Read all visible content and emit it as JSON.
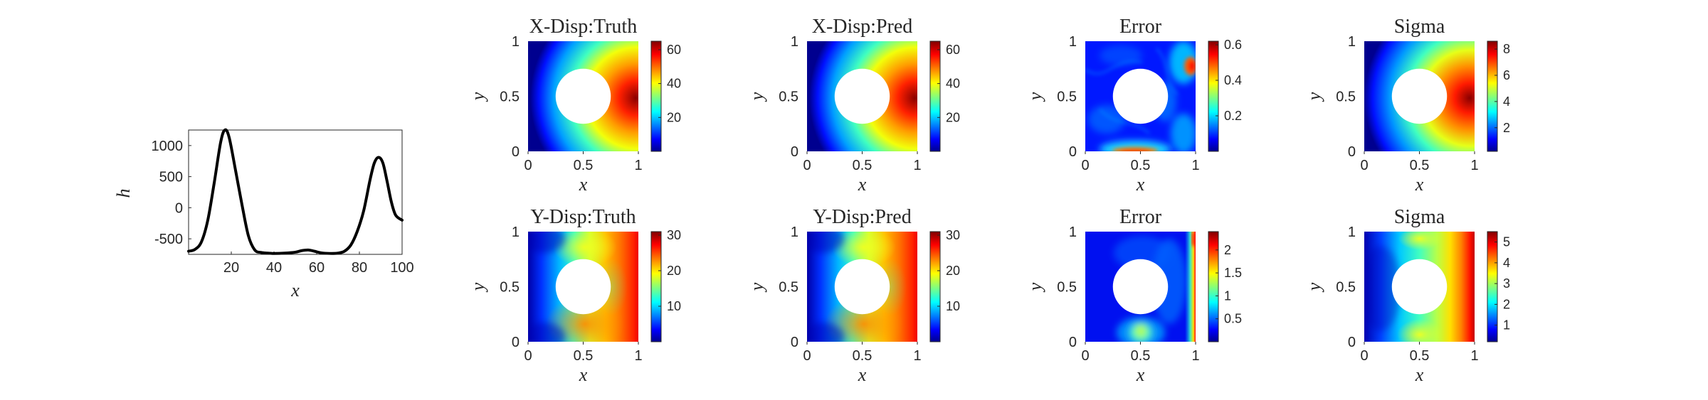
{
  "line_plot": {
    "ylabel": "h",
    "xlabel": "x",
    "xticks": [
      "20",
      "40",
      "60",
      "80",
      "100"
    ],
    "yticks": [
      "1000",
      "500",
      "0",
      "-500"
    ]
  },
  "panels": [
    {
      "title": "X-Disp:Truth",
      "xlabel": "x",
      "ylabel": "y",
      "xticks": [
        "0",
        "0.5",
        "1"
      ],
      "yticks": [
        "0",
        "0.5",
        "1"
      ],
      "cbar_ticks": [
        "60",
        "40",
        "20"
      ]
    },
    {
      "title": "X-Disp:Pred",
      "xlabel": "x",
      "ylabel": "y",
      "xticks": [
        "0",
        "0.5",
        "1"
      ],
      "yticks": [
        "0",
        "0.5",
        "1"
      ],
      "cbar_ticks": [
        "60",
        "40",
        "20"
      ]
    },
    {
      "title": "Error",
      "xlabel": "x",
      "ylabel": "y",
      "xticks": [
        "0",
        "0.5",
        "1"
      ],
      "yticks": [
        "0",
        "0.5",
        "1"
      ],
      "cbar_ticks": [
        "0.6",
        "0.4",
        "0.2"
      ]
    },
    {
      "title": "Sigma",
      "xlabel": "x",
      "ylabel": "y",
      "xticks": [
        "0",
        "0.5",
        "1"
      ],
      "yticks": [
        "0",
        "0.5",
        "1"
      ],
      "cbar_ticks": [
        "8",
        "6",
        "4",
        "2"
      ]
    },
    {
      "title": "Y-Disp:Truth",
      "xlabel": "x",
      "ylabel": "y",
      "xticks": [
        "0",
        "0.5",
        "1"
      ],
      "yticks": [
        "0",
        "0.5",
        "1"
      ],
      "cbar_ticks": [
        "30",
        "20",
        "10"
      ]
    },
    {
      "title": "Y-Disp:Pred",
      "xlabel": "x",
      "ylabel": "y",
      "xticks": [
        "0",
        "0.5",
        "1"
      ],
      "yticks": [
        "0",
        "0.5",
        "1"
      ],
      "cbar_ticks": [
        "30",
        "20",
        "10"
      ]
    },
    {
      "title": "Error",
      "xlabel": "x",
      "ylabel": "y",
      "xticks": [
        "0",
        "0.5",
        "1"
      ],
      "yticks": [
        "0",
        "0.5",
        "1"
      ],
      "cbar_ticks": [
        "2",
        "1.5",
        "1",
        "0.5"
      ]
    },
    {
      "title": "Sigma",
      "xlabel": "x",
      "ylabel": "y",
      "xticks": [
        "0",
        "0.5",
        "1"
      ],
      "yticks": [
        "0",
        "0.5",
        "1"
      ],
      "cbar_ticks": [
        "5",
        "4",
        "3",
        "2",
        "1"
      ]
    }
  ],
  "chart_data": [
    {
      "type": "line",
      "xlabel": "x",
      "ylabel": "h",
      "xlim": [
        0,
        100
      ],
      "ylim": [
        -750,
        1250
      ],
      "series": [
        {
          "color": "#000000",
          "x": [
            0,
            3,
            6,
            9,
            12,
            15,
            17,
            19,
            22,
            25,
            28,
            31,
            34,
            37,
            40,
            45,
            50,
            53,
            56,
            59,
            62,
            66,
            70,
            73,
            76,
            79,
            82,
            85,
            87,
            89,
            91,
            93,
            95,
            97,
            100
          ],
          "y": [
            -700,
            -670,
            -550,
            -200,
            400,
            1050,
            1250,
            1130,
            600,
            50,
            -450,
            -680,
            -720,
            -730,
            -735,
            -730,
            -715,
            -690,
            -680,
            -700,
            -725,
            -735,
            -730,
            -700,
            -600,
            -380,
            -50,
            450,
            720,
            810,
            720,
            420,
            90,
            -120,
            -200
          ]
        }
      ]
    },
    {
      "type": "heatmap",
      "title": "X-Disp:Truth",
      "xlabel": "x",
      "ylabel": "y",
      "xlim": [
        0,
        1
      ],
      "ylim": [
        0,
        1
      ],
      "colormap": "jet",
      "clim": [
        0,
        65
      ],
      "colorbar_ticks": [
        20,
        40,
        60
      ],
      "hole": {
        "center": [
          0.5,
          0.5
        ],
        "radius": 0.25
      }
    },
    {
      "type": "heatmap",
      "title": "X-Disp:Pred",
      "xlabel": "x",
      "ylabel": "y",
      "xlim": [
        0,
        1
      ],
      "ylim": [
        0,
        1
      ],
      "colormap": "jet",
      "clim": [
        0,
        65
      ],
      "colorbar_ticks": [
        20,
        40,
        60
      ],
      "hole": {
        "center": [
          0.5,
          0.5
        ],
        "radius": 0.25
      }
    },
    {
      "type": "heatmap",
      "title": "Error",
      "xlabel": "x",
      "ylabel": "y",
      "xlim": [
        0,
        1
      ],
      "ylim": [
        0,
        1
      ],
      "colormap": "jet",
      "clim": [
        0,
        0.62
      ],
      "colorbar_ticks": [
        0.2,
        0.4,
        0.6
      ],
      "hole": {
        "center": [
          0.5,
          0.5
        ],
        "radius": 0.25
      }
    },
    {
      "type": "heatmap",
      "title": "Sigma",
      "xlabel": "x",
      "ylabel": "y",
      "xlim": [
        0,
        1
      ],
      "ylim": [
        0,
        1
      ],
      "colormap": "jet",
      "clim": [
        0.2,
        8.6
      ],
      "colorbar_ticks": [
        2,
        4,
        6,
        8
      ],
      "hole": {
        "center": [
          0.5,
          0.5
        ],
        "radius": 0.25
      }
    },
    {
      "type": "heatmap",
      "title": "Y-Disp:Truth",
      "xlabel": "x",
      "ylabel": "y",
      "xlim": [
        0,
        1
      ],
      "ylim": [
        0,
        1
      ],
      "colormap": "jet",
      "clim": [
        0,
        31
      ],
      "colorbar_ticks": [
        10,
        20,
        30
      ],
      "hole": {
        "center": [
          0.5,
          0.5
        ],
        "radius": 0.25
      }
    },
    {
      "type": "heatmap",
      "title": "Y-Disp:Pred",
      "xlabel": "x",
      "ylabel": "y",
      "xlim": [
        0,
        1
      ],
      "ylim": [
        0,
        1
      ],
      "colormap": "jet",
      "clim": [
        0,
        31
      ],
      "colorbar_ticks": [
        10,
        20,
        30
      ],
      "hole": {
        "center": [
          0.5,
          0.5
        ],
        "radius": 0.25
      }
    },
    {
      "type": "heatmap",
      "title": "Error",
      "xlabel": "x",
      "ylabel": "y",
      "xlim": [
        0,
        1
      ],
      "ylim": [
        0,
        1
      ],
      "colormap": "jet",
      "clim": [
        0,
        2.4
      ],
      "colorbar_ticks": [
        0.5,
        1,
        1.5,
        2
      ],
      "hole": {
        "center": [
          0.5,
          0.5
        ],
        "radius": 0.25
      }
    },
    {
      "type": "heatmap",
      "title": "Sigma",
      "xlabel": "x",
      "ylabel": "y",
      "xlim": [
        0,
        1
      ],
      "ylim": [
        0,
        1
      ],
      "colormap": "jet",
      "clim": [
        0.2,
        5.5
      ],
      "colorbar_ticks": [
        1,
        2,
        3,
        4,
        5
      ],
      "hole": {
        "center": [
          0.5,
          0.5
        ],
        "radius": 0.25
      }
    }
  ]
}
